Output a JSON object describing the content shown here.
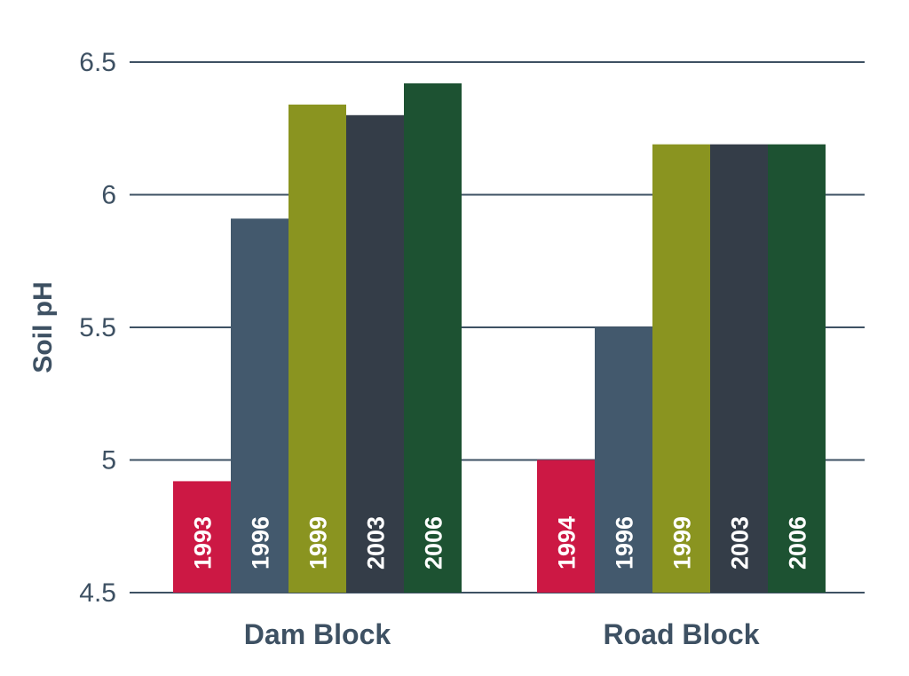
{
  "chart_data": {
    "type": "bar",
    "title": "",
    "xlabel": "",
    "ylabel": "Soil pH",
    "ylim": [
      4.5,
      6.5
    ],
    "yticks": [
      "4.5",
      "5",
      "5.5",
      "6",
      "6.5"
    ],
    "grid": true,
    "categories": [
      "Dam Block",
      "Road Block"
    ],
    "groups": [
      {
        "category": "Dam Block",
        "bars": [
          {
            "label": "1993",
            "value": 4.92,
            "color": "#cc1844"
          },
          {
            "label": "1996",
            "value": 5.91,
            "color": "#43596d"
          },
          {
            "label": "1999",
            "value": 6.34,
            "color": "#8a9420"
          },
          {
            "label": "2003",
            "value": 6.3,
            "color": "#343d48"
          },
          {
            "label": "2006",
            "value": 6.42,
            "color": "#1d5232"
          }
        ]
      },
      {
        "category": "Road Block",
        "bars": [
          {
            "label": "1994",
            "value": 5.0,
            "color": "#cc1844"
          },
          {
            "label": "1996",
            "value": 5.5,
            "color": "#43596d"
          },
          {
            "label": "1999",
            "value": 6.19,
            "color": "#8a9420"
          },
          {
            "label": "2003",
            "value": 6.19,
            "color": "#343d48"
          },
          {
            "label": "2006",
            "value": 6.19,
            "color": "#1d5232"
          }
        ]
      }
    ],
    "colors": {
      "grid": "#3e5163",
      "text": "#3e5163",
      "bar_text": "#ffffff"
    }
  }
}
